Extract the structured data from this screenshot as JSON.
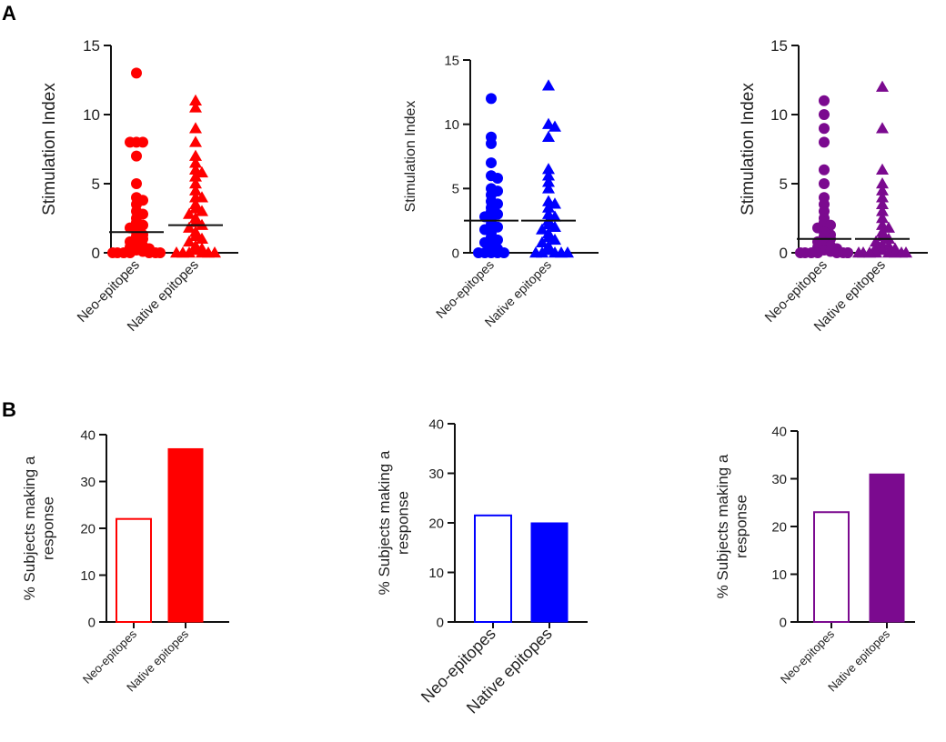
{
  "panel_labels": [
    "A",
    "B"
  ],
  "chart_data": [
    {
      "type": "scatter",
      "panel": "A",
      "color": "#ff0000",
      "ylabel": "Stimulation  Index",
      "ylim": [
        0,
        15
      ],
      "yticks": [
        0,
        5,
        10,
        15
      ],
      "categories": [
        "Neo-epitopes",
        "Native epitopes"
      ],
      "series": [
        {
          "name": "Neo-epitopes",
          "marker": "circle",
          "median": 1.5,
          "values": [
            13,
            8,
            8,
            8,
            7,
            5,
            4,
            3.8,
            3.5,
            3,
            2.8,
            2.5,
            2.2,
            2,
            1.8,
            1.5,
            1.3,
            1.2,
            1,
            0.8,
            0.6,
            0.5,
            0.4,
            0.3,
            0.2,
            0.1,
            0,
            0,
            0,
            0,
            0,
            0,
            0
          ]
        },
        {
          "name": "Native epitopes",
          "marker": "triangle",
          "median": 2,
          "values": [
            11,
            10.5,
            9,
            8,
            7,
            6.5,
            6,
            5.8,
            5.5,
            5,
            4.5,
            4,
            4,
            3.5,
            3.2,
            3,
            2.8,
            2.5,
            2.2,
            2,
            1.8,
            1.5,
            1.2,
            1,
            0.8,
            0.5,
            0.3,
            0.2,
            0,
            0,
            0,
            0,
            0,
            0
          ]
        }
      ]
    },
    {
      "type": "scatter",
      "panel": "A",
      "color": "#0000ff",
      "ylabel": "Stimulation  Index",
      "ylim": [
        0,
        15
      ],
      "yticks": [
        0,
        5,
        10,
        15
      ],
      "categories": [
        "Neo-epitopes",
        "Native epitopes"
      ],
      "series": [
        {
          "name": "Neo-epitopes",
          "marker": "circle",
          "median": 2.5,
          "values": [
            12,
            9,
            8.5,
            7,
            6,
            5.8,
            5,
            4.8,
            4.5,
            4,
            3.8,
            3.5,
            3.2,
            3,
            2.8,
            2.5,
            2.2,
            2,
            1.8,
            1.5,
            1.2,
            1,
            0.8,
            0.5,
            0.3,
            0,
            0,
            0,
            0,
            0
          ]
        },
        {
          "name": "Native epitopes",
          "marker": "triangle",
          "median": 2.5,
          "values": [
            13,
            10,
            9.8,
            9,
            6.5,
            6,
            5.5,
            5,
            4,
            3.8,
            3.5,
            3,
            2.8,
            2.5,
            2.2,
            2,
            1.8,
            1.5,
            1.2,
            1,
            0.8,
            0.5,
            0.2,
            0,
            0,
            0,
            0,
            0
          ]
        }
      ]
    },
    {
      "type": "scatter",
      "panel": "A",
      "color": "#7b0a8f",
      "ylabel": "Stimulation  Index",
      "ylim": [
        0,
        15
      ],
      "yticks": [
        0,
        5,
        10,
        15
      ],
      "categories": [
        "Neo-epitopes",
        "Native epitopes"
      ],
      "series": [
        {
          "name": "Neo-epitopes",
          "marker": "circle",
          "median": 1,
          "values": [
            11,
            10,
            9,
            8,
            6,
            5,
            4,
            3.5,
            3,
            2.5,
            2.2,
            2,
            1.8,
            1.5,
            1.3,
            1.2,
            1,
            0.8,
            0.6,
            0.5,
            0.4,
            0.3,
            0.2,
            0.1,
            0,
            0,
            0,
            0,
            0,
            0,
            0,
            0
          ]
        },
        {
          "name": "Native epitopes",
          "marker": "triangle",
          "median": 1,
          "values": [
            12,
            9,
            6,
            5,
            4.5,
            4,
            3.5,
            3,
            2.5,
            2,
            1.8,
            1.5,
            1.2,
            1,
            0.8,
            0.6,
            0.5,
            0.4,
            0.3,
            0.2,
            0,
            0,
            0,
            0,
            0,
            0,
            0,
            0
          ]
        }
      ]
    },
    {
      "type": "bar",
      "panel": "B",
      "color": "#ff0000",
      "ylabel": [
        "% Subjects making a",
        "response"
      ],
      "ylim": [
        0,
        40
      ],
      "yticks": [
        0,
        10,
        20,
        30,
        40
      ],
      "categories": [
        "Neo-epitopes",
        "Native epitopes"
      ],
      "values": [
        22,
        37
      ],
      "filled": [
        false,
        true
      ]
    },
    {
      "type": "bar",
      "panel": "B",
      "color": "#0000ff",
      "ylabel": [
        "% Subjects making a",
        "response"
      ],
      "ylim": [
        0,
        40
      ],
      "yticks": [
        0,
        10,
        20,
        30,
        40
      ],
      "categories": [
        "Neo-epitopes",
        "Native epitopes"
      ],
      "values": [
        21.5,
        20
      ],
      "filled": [
        false,
        true
      ]
    },
    {
      "type": "bar",
      "panel": "B",
      "color": "#7b0a8f",
      "ylabel": [
        "% Subjects making a",
        "response"
      ],
      "ylim": [
        0,
        40
      ],
      "yticks": [
        0,
        10,
        20,
        30,
        40
      ],
      "categories": [
        "Neo-epitopes",
        "Native epitopes"
      ],
      "values": [
        23,
        31
      ],
      "filled": [
        false,
        true
      ]
    }
  ]
}
